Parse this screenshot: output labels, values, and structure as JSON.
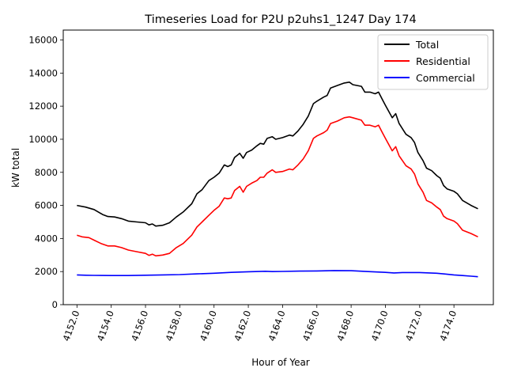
{
  "chart_data": {
    "type": "line",
    "title": "Timeseries Load for P2U p2uhs1_1247  Day 174",
    "xlabel": "Hour of Year",
    "ylabel": "kW total",
    "xlim": [
      4151.2,
      4176.3
    ],
    "ylim": [
      0,
      16600
    ],
    "xticks": [
      4152,
      4154,
      4156,
      4158,
      4160,
      4162,
      4164,
      4166,
      4168,
      4170,
      4172,
      4174
    ],
    "xtick_labels": [
      "4152.0",
      "4154.0",
      "4156.0",
      "4158.0",
      "4160.0",
      "4162.0",
      "4164.0",
      "4166.0",
      "4168.0",
      "4170.0",
      "4172.0",
      "4174.0"
    ],
    "yticks": [
      0,
      2000,
      4000,
      6000,
      8000,
      10000,
      12000,
      14000,
      16000
    ],
    "ytick_labels": [
      "0",
      "2000",
      "4000",
      "6000",
      "8000",
      "10000",
      "12000",
      "14000",
      "16000"
    ],
    "legend_position": "top-right",
    "series": [
      {
        "name": "Total",
        "color": "#000000",
        "points": [
          [
            4152.0,
            6000
          ],
          [
            4152.5,
            5900
          ],
          [
            4153.0,
            5750
          ],
          [
            4153.5,
            5450
          ],
          [
            4153.8,
            5330
          ],
          [
            4154.2,
            5300
          ],
          [
            4154.6,
            5200
          ],
          [
            4155.0,
            5050
          ],
          [
            4155.5,
            5000
          ],
          [
            4156.0,
            4950
          ],
          [
            4156.2,
            4820
          ],
          [
            4156.4,
            4880
          ],
          [
            4156.6,
            4750
          ],
          [
            4157.0,
            4800
          ],
          [
            4157.4,
            4950
          ],
          [
            4157.8,
            5300
          ],
          [
            4158.2,
            5600
          ],
          [
            4158.7,
            6100
          ],
          [
            4159.0,
            6700
          ],
          [
            4159.3,
            6950
          ],
          [
            4159.7,
            7500
          ],
          [
            4160.0,
            7700
          ],
          [
            4160.3,
            7950
          ],
          [
            4160.6,
            8450
          ],
          [
            4160.8,
            8350
          ],
          [
            4161.0,
            8450
          ],
          [
            4161.2,
            8900
          ],
          [
            4161.5,
            9150
          ],
          [
            4161.7,
            8850
          ],
          [
            4161.9,
            9200
          ],
          [
            4162.2,
            9350
          ],
          [
            4162.5,
            9600
          ],
          [
            4162.7,
            9750
          ],
          [
            4162.9,
            9700
          ],
          [
            4163.1,
            10050
          ],
          [
            4163.4,
            10150
          ],
          [
            4163.6,
            10000
          ],
          [
            4164.0,
            10100
          ],
          [
            4164.4,
            10250
          ],
          [
            4164.6,
            10200
          ],
          [
            4164.9,
            10500
          ],
          [
            4165.2,
            10900
          ],
          [
            4165.5,
            11400
          ],
          [
            4165.8,
            12150
          ],
          [
            4166.0,
            12300
          ],
          [
            4166.4,
            12550
          ],
          [
            4166.6,
            12650
          ],
          [
            4166.8,
            13100
          ],
          [
            4167.2,
            13250
          ],
          [
            4167.6,
            13400
          ],
          [
            4167.9,
            13450
          ],
          [
            4168.1,
            13300
          ],
          [
            4168.6,
            13200
          ],
          [
            4168.8,
            12850
          ],
          [
            4169.1,
            12850
          ],
          [
            4169.4,
            12750
          ],
          [
            4169.6,
            12850
          ],
          [
            4169.8,
            12450
          ],
          [
            4170.0,
            12050
          ],
          [
            4170.4,
            11300
          ],
          [
            4170.6,
            11550
          ],
          [
            4170.8,
            10950
          ],
          [
            4171.2,
            10300
          ],
          [
            4171.5,
            10100
          ],
          [
            4171.7,
            9800
          ],
          [
            4171.9,
            9200
          ],
          [
            4172.2,
            8700
          ],
          [
            4172.4,
            8250
          ],
          [
            4172.7,
            8100
          ],
          [
            4173.0,
            7800
          ],
          [
            4173.2,
            7650
          ],
          [
            4173.4,
            7200
          ],
          [
            4173.6,
            7000
          ],
          [
            4174.0,
            6850
          ],
          [
            4174.2,
            6700
          ],
          [
            4174.5,
            6300
          ],
          [
            4175.0,
            6000
          ],
          [
            4175.4,
            5800
          ]
        ]
      },
      {
        "name": "Residential",
        "color": "#ff0000",
        "points": [
          [
            4152.0,
            4200
          ],
          [
            4152.3,
            4100
          ],
          [
            4152.7,
            4050
          ],
          [
            4153.0,
            3900
          ],
          [
            4153.4,
            3700
          ],
          [
            4153.8,
            3550
          ],
          [
            4154.2,
            3550
          ],
          [
            4154.6,
            3450
          ],
          [
            4155.0,
            3300
          ],
          [
            4155.5,
            3200
          ],
          [
            4156.0,
            3100
          ],
          [
            4156.2,
            2980
          ],
          [
            4156.4,
            3050
          ],
          [
            4156.6,
            2950
          ],
          [
            4157.0,
            3000
          ],
          [
            4157.4,
            3100
          ],
          [
            4157.8,
            3450
          ],
          [
            4158.2,
            3700
          ],
          [
            4158.7,
            4200
          ],
          [
            4159.0,
            4700
          ],
          [
            4159.3,
            5000
          ],
          [
            4159.7,
            5400
          ],
          [
            4160.0,
            5700
          ],
          [
            4160.3,
            5950
          ],
          [
            4160.6,
            6450
          ],
          [
            4160.8,
            6400
          ],
          [
            4161.0,
            6450
          ],
          [
            4161.2,
            6900
          ],
          [
            4161.5,
            7150
          ],
          [
            4161.7,
            6800
          ],
          [
            4161.9,
            7150
          ],
          [
            4162.2,
            7350
          ],
          [
            4162.5,
            7500
          ],
          [
            4162.7,
            7700
          ],
          [
            4162.9,
            7700
          ],
          [
            4163.1,
            7950
          ],
          [
            4163.4,
            8150
          ],
          [
            4163.6,
            8000
          ],
          [
            4164.0,
            8050
          ],
          [
            4164.4,
            8200
          ],
          [
            4164.6,
            8150
          ],
          [
            4164.9,
            8450
          ],
          [
            4165.2,
            8800
          ],
          [
            4165.5,
            9300
          ],
          [
            4165.8,
            10050
          ],
          [
            4166.0,
            10200
          ],
          [
            4166.4,
            10400
          ],
          [
            4166.6,
            10550
          ],
          [
            4166.8,
            10950
          ],
          [
            4167.2,
            11100
          ],
          [
            4167.6,
            11300
          ],
          [
            4167.9,
            11350
          ],
          [
            4168.1,
            11300
          ],
          [
            4168.6,
            11150
          ],
          [
            4168.8,
            10850
          ],
          [
            4169.1,
            10850
          ],
          [
            4169.4,
            10750
          ],
          [
            4169.6,
            10850
          ],
          [
            4169.8,
            10450
          ],
          [
            4170.0,
            10050
          ],
          [
            4170.4,
            9300
          ],
          [
            4170.6,
            9550
          ],
          [
            4170.8,
            9000
          ],
          [
            4171.2,
            8400
          ],
          [
            4171.5,
            8200
          ],
          [
            4171.7,
            7900
          ],
          [
            4171.9,
            7300
          ],
          [
            4172.2,
            6800
          ],
          [
            4172.4,
            6300
          ],
          [
            4172.7,
            6150
          ],
          [
            4173.0,
            5900
          ],
          [
            4173.2,
            5750
          ],
          [
            4173.4,
            5350
          ],
          [
            4173.6,
            5200
          ],
          [
            4174.0,
            5050
          ],
          [
            4174.2,
            4900
          ],
          [
            4174.5,
            4500
          ],
          [
            4175.0,
            4300
          ],
          [
            4175.4,
            4100
          ]
        ]
      },
      {
        "name": "Commercial",
        "color": "#0000ff",
        "points": [
          [
            4152.0,
            1800
          ],
          [
            4152.5,
            1780
          ],
          [
            4153.0,
            1770
          ],
          [
            4154.0,
            1760
          ],
          [
            4155.0,
            1760
          ],
          [
            4156.0,
            1780
          ],
          [
            4157.0,
            1800
          ],
          [
            4158.0,
            1820
          ],
          [
            4159.0,
            1860
          ],
          [
            4160.0,
            1900
          ],
          [
            4161.0,
            1950
          ],
          [
            4162.0,
            1990
          ],
          [
            4163.0,
            2020
          ],
          [
            4163.4,
            2000
          ],
          [
            4164.0,
            2010
          ],
          [
            4165.0,
            2030
          ],
          [
            4166.0,
            2040
          ],
          [
            4167.0,
            2060
          ],
          [
            4168.0,
            2050
          ],
          [
            4169.0,
            2000
          ],
          [
            4170.0,
            1950
          ],
          [
            4170.5,
            1920
          ],
          [
            4171.0,
            1940
          ],
          [
            4172.0,
            1940
          ],
          [
            4173.0,
            1900
          ],
          [
            4173.5,
            1850
          ],
          [
            4174.0,
            1800
          ],
          [
            4174.5,
            1760
          ],
          [
            4175.0,
            1720
          ],
          [
            4175.4,
            1690
          ]
        ]
      }
    ]
  }
}
